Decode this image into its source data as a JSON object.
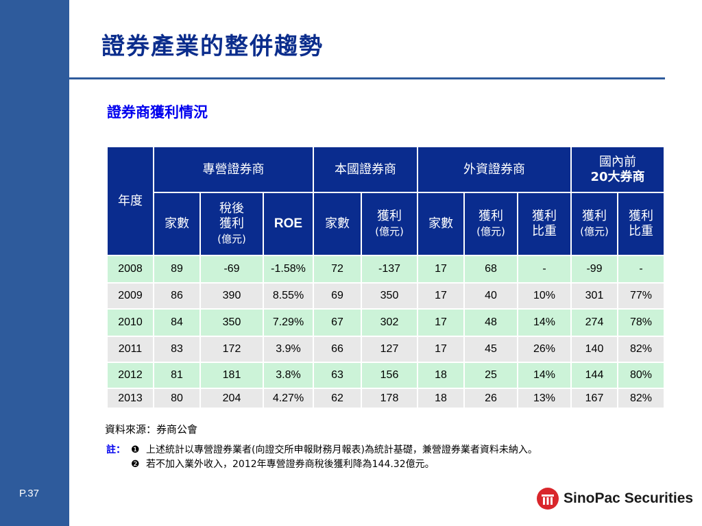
{
  "page": {
    "title": "證券產業的整併趨勢",
    "subtitle": "證券商獲利情況",
    "page_number": "P.37"
  },
  "table": {
    "header_groups": {
      "year": "年度",
      "domestic_dealer": "專營證券商",
      "local_brokers": "本國證券商",
      "foreign_brokers": "外資證券商",
      "top20": [
        "國內前",
        "20大券商"
      ]
    },
    "sub_headers": {
      "count": "家數",
      "after_tax_profit": [
        "稅後",
        "獲利",
        "(億元)"
      ],
      "roe": "ROE",
      "profit": [
        "獲利",
        "(億元)"
      ],
      "profit_share": [
        "獲利",
        "比重"
      ]
    },
    "rows": [
      [
        "2008",
        "89",
        "-69",
        "-1.58%",
        "72",
        "-137",
        "17",
        "68",
        "-",
        "-99",
        "-"
      ],
      [
        "2009",
        "86",
        "390",
        "8.55%",
        "69",
        "350",
        "17",
        "40",
        "10%",
        "301",
        "77%"
      ],
      [
        "2010",
        "84",
        "350",
        "7.29%",
        "67",
        "302",
        "17",
        "48",
        "14%",
        "274",
        "78%"
      ],
      [
        "2011",
        "83",
        "172",
        "3.9%",
        "66",
        "127",
        "17",
        "45",
        "26%",
        "140",
        "82%"
      ],
      [
        "2012",
        "81",
        "181",
        "3.8%",
        "63",
        "156",
        "18",
        "25",
        "14%",
        "144",
        "80%"
      ],
      [
        "2013",
        "80",
        "204",
        "4.27%",
        "62",
        "178",
        "18",
        "26",
        "13%",
        "167",
        "82%"
      ]
    ]
  },
  "source": "資料來源：券商公會",
  "notes": {
    "label": "註：",
    "items": [
      {
        "marker": "❶",
        "text": "上述統計以專營證券業者(向證交所申報財務月報表)為統計基礎，兼營證券業者資料未納入。"
      },
      {
        "marker": "❷",
        "text": "若不加入業外收入，2012年專營證券商稅後獲利降為144.32億元。"
      }
    ]
  },
  "logo": {
    "text": "SinoPac Securities",
    "icon": "sinopac-logo-icon",
    "color": "#d9262b"
  },
  "colors": {
    "sidebar": "#2e5b9c",
    "header_fill": "#0a2c8e",
    "row_odd": "#ccf3d8",
    "row_even": "#e8e8e8",
    "title": "#0b2d8c",
    "subtitle": "#0000ee"
  }
}
